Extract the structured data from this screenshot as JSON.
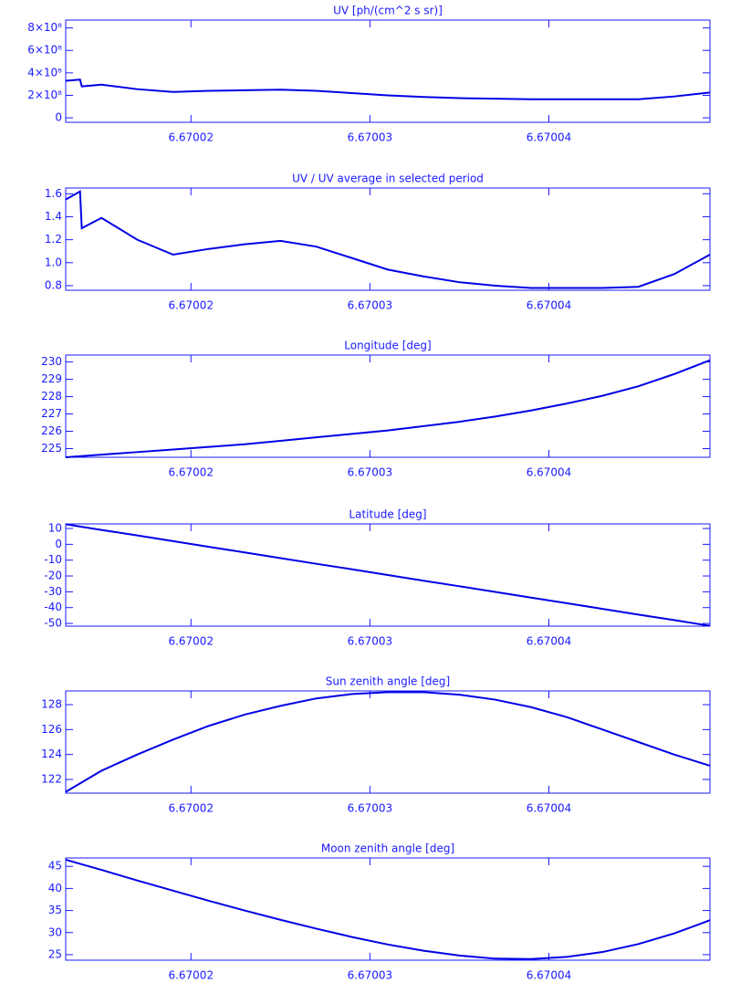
{
  "chart_data": [
    {
      "type": "line",
      "title": "UV [ph/(cm^2 s sr)]",
      "x": [
        6.670013,
        6.6700138,
        6.6700139,
        6.670015,
        6.670017,
        6.670019,
        6.670021,
        6.670023,
        6.670025,
        6.670027,
        6.670029,
        6.670031,
        6.670033,
        6.670035,
        6.670037,
        6.670039,
        6.670041,
        6.670043,
        6.670045,
        6.670047,
        6.670049
      ],
      "values": [
        330000000,
        340000000,
        280000000,
        295000000,
        255000000,
        230000000,
        240000000,
        245000000,
        250000000,
        240000000,
        220000000,
        200000000,
        185000000,
        175000000,
        170000000,
        165000000,
        165000000,
        165000000,
        165000000,
        190000000,
        225000000
      ],
      "color": "#0000e6",
      "xlim": [
        6.670013,
        6.670049
      ],
      "xticks": [
        6.67002,
        6.67003,
        6.67004
      ],
      "ylim": [
        -40000000,
        870000000
      ],
      "yticks": [
        0,
        {
          "value": 200000000,
          "label": "2×10⁸"
        },
        {
          "value": 400000000,
          "label": "4×10⁸"
        },
        {
          "value": 600000000,
          "label": "6×10⁸"
        },
        {
          "value": 800000000,
          "label": "8×10⁸"
        }
      ]
    },
    {
      "type": "line",
      "title": "UV / UV average in selected period",
      "x": [
        6.670013,
        6.6700138,
        6.6700139,
        6.670015,
        6.670017,
        6.670019,
        6.670021,
        6.670023,
        6.670025,
        6.670027,
        6.670029,
        6.670031,
        6.670033,
        6.670035,
        6.670037,
        6.670039,
        6.670041,
        6.670043,
        6.670045,
        6.670047,
        6.670049
      ],
      "values": [
        1.55,
        1.62,
        1.3,
        1.39,
        1.2,
        1.07,
        1.12,
        1.16,
        1.19,
        1.14,
        1.04,
        0.94,
        0.88,
        0.83,
        0.8,
        0.78,
        0.78,
        0.78,
        0.79,
        0.9,
        1.07
      ],
      "color": "#0000e6",
      "xlim": [
        6.670013,
        6.670049
      ],
      "xticks": [
        6.67002,
        6.67003,
        6.67004
      ],
      "ylim": [
        0.76,
        1.65
      ],
      "yticks": [
        0.8,
        {
          "value": 1,
          "label": "1.0"
        },
        1.2,
        1.4,
        1.6
      ]
    },
    {
      "type": "line",
      "title": "Longitude [deg]",
      "x": [
        6.670013,
        6.670015,
        6.670017,
        6.670019,
        6.670021,
        6.670023,
        6.670025,
        6.670027,
        6.670029,
        6.670031,
        6.670033,
        6.670035,
        6.670037,
        6.670039,
        6.670041,
        6.670043,
        6.670045,
        6.670047,
        6.670049
      ],
      "values": [
        224.5,
        224.65,
        224.8,
        224.95,
        225.1,
        225.25,
        225.45,
        225.65,
        225.85,
        226.05,
        226.3,
        226.55,
        226.85,
        227.2,
        227.6,
        228.05,
        228.6,
        229.3,
        230.1
      ],
      "color": "#0000e6",
      "xlim": [
        6.670013,
        6.670049
      ],
      "xticks": [
        6.67002,
        6.67003,
        6.67004
      ],
      "ylim": [
        224.5,
        230.4
      ],
      "yticks": [
        225,
        226,
        227,
        228,
        229,
        230
      ]
    },
    {
      "type": "line",
      "title": "Latitude [deg]",
      "x": [
        6.670013,
        6.670015,
        6.670017,
        6.670019,
        6.670021,
        6.670023,
        6.670025,
        6.670027,
        6.670029,
        6.670031,
        6.670033,
        6.670035,
        6.670037,
        6.670039,
        6.670041,
        6.670043,
        6.670045,
        6.670047,
        6.670049
      ],
      "values": [
        12.7,
        9.1,
        5.6,
        2.0,
        -1.6,
        -5.1,
        -8.7,
        -12.3,
        -15.8,
        -19.4,
        -23.0,
        -26.5,
        -30.1,
        -33.7,
        -37.2,
        -40.8,
        -44.4,
        -47.9,
        -51.5
      ],
      "color": "#0000e6",
      "xlim": [
        6.670013,
        6.670049
      ],
      "xticks": [
        6.67002,
        6.67003,
        6.67004
      ],
      "ylim": [
        -51.7,
        12.9
      ],
      "yticks": [
        -50,
        -40,
        -30,
        -20,
        -10,
        0,
        10
      ]
    },
    {
      "type": "line",
      "title": "Sun zenith angle [deg]",
      "x": [
        6.670013,
        6.670015,
        6.670017,
        6.670019,
        6.670021,
        6.670023,
        6.670025,
        6.670027,
        6.670029,
        6.670031,
        6.670033,
        6.670035,
        6.670037,
        6.670039,
        6.670041,
        6.670043,
        6.670045,
        6.670047,
        6.670049
      ],
      "values": [
        121.0,
        122.7,
        124.0,
        125.2,
        126.3,
        127.2,
        127.9,
        128.5,
        128.85,
        129.0,
        129.0,
        128.8,
        128.4,
        127.8,
        127.0,
        126.0,
        125.0,
        124.0,
        123.1
      ],
      "color": "#0000e6",
      "xlim": [
        6.670013,
        6.670049
      ],
      "xticks": [
        6.67002,
        6.67003,
        6.67004
      ],
      "ylim": [
        120.9,
        129.1
      ],
      "yticks": [
        122,
        124,
        126,
        128
      ]
    },
    {
      "type": "line",
      "title": "Moon zenith angle [deg]",
      "x": [
        6.670013,
        6.670015,
        6.670017,
        6.670019,
        6.670021,
        6.670023,
        6.670025,
        6.670027,
        6.670029,
        6.670031,
        6.670033,
        6.670035,
        6.670037,
        6.670039,
        6.670041,
        6.670043,
        6.670045,
        6.670047,
        6.670049
      ],
      "values": [
        46.5,
        44.2,
        41.8,
        39.5,
        37.2,
        35.0,
        32.9,
        30.9,
        29.0,
        27.3,
        25.9,
        24.8,
        24.1,
        24.0,
        24.5,
        25.6,
        27.4,
        29.8,
        32.8
      ],
      "color": "#0000e6",
      "xlim": [
        6.670013,
        6.670049
      ],
      "xticks": [
        6.67002,
        6.67003,
        6.67004
      ],
      "ylim": [
        23.75,
        46.9
      ],
      "yticks": [
        25,
        30,
        35,
        40,
        45
      ]
    }
  ]
}
